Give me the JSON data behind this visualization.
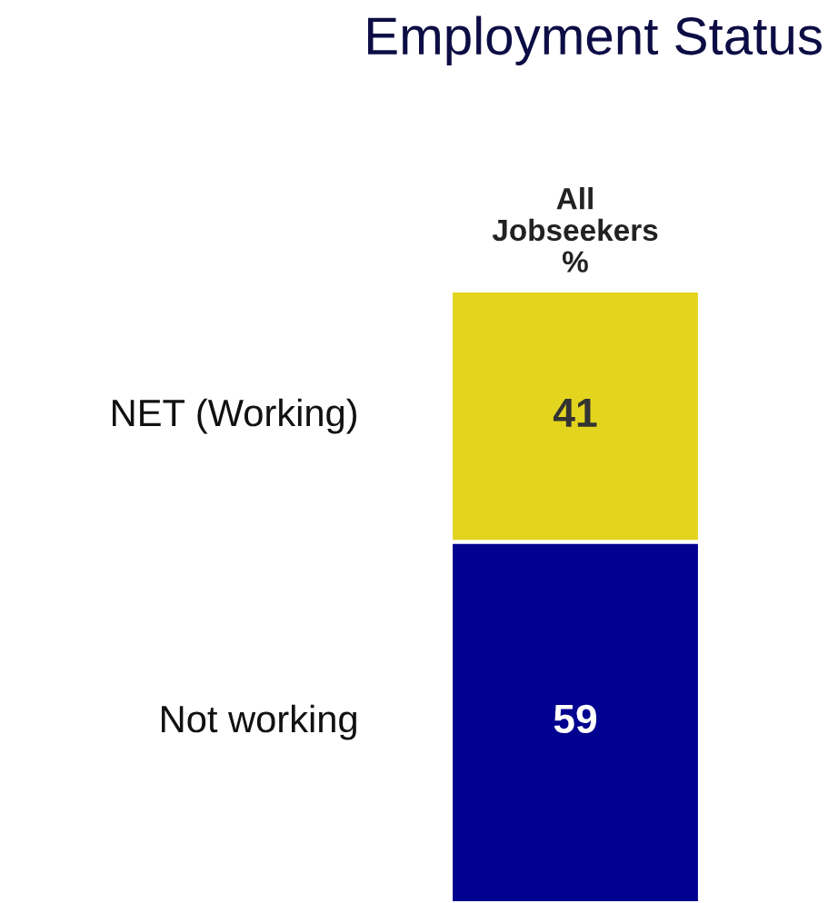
{
  "chart_data": {
    "type": "bar",
    "title": "Employment Status",
    "categories": [
      "All\nJobseekers\n%"
    ],
    "stacked": true,
    "data_labels": true,
    "series": [
      {
        "name": "Not working",
        "color": "#01018f",
        "values": [
          59
        ]
      },
      {
        "name": "NET (Working)",
        "color": "#e3d41e",
        "values": [
          41
        ]
      }
    ]
  }
}
